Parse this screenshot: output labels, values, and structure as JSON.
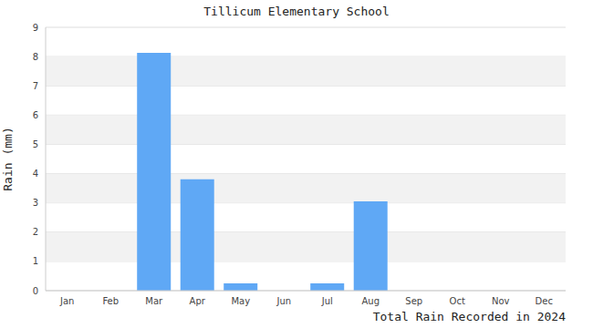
{
  "chart_data": {
    "type": "bar",
    "title": "Tillicum Elementary School",
    "y_label": "Rain (mm)",
    "x_label": "Total Rain Recorded in 2024",
    "categories": [
      "Jan",
      "Feb",
      "Mar",
      "Apr",
      "May",
      "Jun",
      "Jul",
      "Aug",
      "Sep",
      "Oct",
      "Nov",
      "Dec"
    ],
    "values": [
      0,
      0,
      8.13,
      3.81,
      0.25,
      0,
      0.25,
      3.05,
      0,
      0,
      0,
      0
    ],
    "color": "#5fa8f5",
    "ylim": [
      0,
      9
    ],
    "yticks": [
      0,
      1,
      2,
      3,
      4,
      5,
      6,
      7,
      8,
      9
    ],
    "grid": true
  }
}
